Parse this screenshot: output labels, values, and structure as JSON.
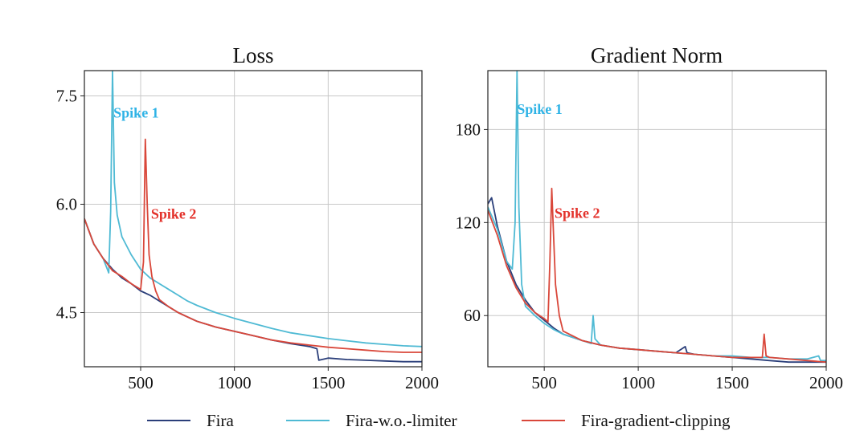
{
  "colors": {
    "fira": "#2b3f7a",
    "fira_wo_limiter": "#4fbad4",
    "fira_gradient_clipping": "#d9473a",
    "spike1_text": "#2fb3e6",
    "spike2_text": "#e3322b"
  },
  "legend": [
    {
      "key": "fira",
      "label": "Fira"
    },
    {
      "key": "fira_wo_limiter",
      "label": "Fira-w.o.-limiter"
    },
    {
      "key": "fira_gradient_clipping",
      "label": "Fira-gradient-clipping"
    }
  ],
  "chart_data": [
    {
      "type": "line",
      "title": "Loss",
      "xlabel": "",
      "ylabel": "",
      "xlim": [
        200,
        2000
      ],
      "ylim": [
        3.75,
        7.85
      ],
      "xticks": [
        500,
        1000,
        1500,
        2000
      ],
      "xtick_labels": [
        "500",
        "1000",
        "1500",
        "2000"
      ],
      "yticks": [
        4.5,
        6.0,
        7.5
      ],
      "ytick_labels": [
        "4.5",
        "6.0",
        "7.5"
      ],
      "grid": true,
      "annotations": [
        {
          "text": "Spike 1",
          "x": 355,
          "y": 7.2,
          "color_key": "spike1_text"
        },
        {
          "text": "Spike 2",
          "x": 555,
          "y": 5.8,
          "color_key": "spike2_text"
        }
      ],
      "series": [
        {
          "key": "fira",
          "name": "Fira",
          "x": [
            200,
            250,
            300,
            350,
            400,
            450,
            500,
            550,
            600,
            650,
            700,
            750,
            800,
            900,
            1000,
            1100,
            1200,
            1300,
            1400,
            1440,
            1450,
            1500,
            1600,
            1700,
            1800,
            1900,
            2000
          ],
          "y": [
            5.8,
            5.45,
            5.25,
            5.1,
            4.98,
            4.9,
            4.8,
            4.74,
            4.66,
            4.58,
            4.5,
            4.44,
            4.38,
            4.3,
            4.24,
            4.18,
            4.12,
            4.07,
            4.03,
            4.0,
            3.84,
            3.87,
            3.85,
            3.84,
            3.83,
            3.82,
            3.82
          ]
        },
        {
          "key": "fira_wo_limiter",
          "name": "Fira-w.o.-limiter",
          "x": [
            200,
            250,
            300,
            330,
            340,
            350,
            360,
            375,
            400,
            450,
            500,
            550,
            600,
            650,
            700,
            750,
            800,
            900,
            1000,
            1100,
            1200,
            1300,
            1400,
            1500,
            1600,
            1700,
            1800,
            1900,
            2000
          ],
          "y": [
            5.8,
            5.45,
            5.25,
            5.05,
            5.9,
            7.85,
            6.3,
            5.85,
            5.55,
            5.3,
            5.1,
            4.98,
            4.9,
            4.82,
            4.74,
            4.66,
            4.6,
            4.5,
            4.42,
            4.35,
            4.28,
            4.22,
            4.18,
            4.14,
            4.11,
            4.08,
            4.06,
            4.04,
            4.03
          ]
        },
        {
          "key": "fira_gradient_clipping",
          "name": "Fira-gradient-clipping",
          "x": [
            200,
            250,
            300,
            350,
            400,
            450,
            500,
            515,
            525,
            535,
            545,
            560,
            580,
            600,
            650,
            700,
            750,
            800,
            900,
            1000,
            1100,
            1200,
            1300,
            1400,
            1500,
            1600,
            1700,
            1800,
            1900,
            2000
          ],
          "y": [
            5.8,
            5.45,
            5.25,
            5.08,
            5.0,
            4.9,
            4.82,
            5.2,
            6.9,
            6.0,
            5.3,
            5.0,
            4.8,
            4.68,
            4.58,
            4.5,
            4.44,
            4.38,
            4.3,
            4.24,
            4.18,
            4.12,
            4.08,
            4.05,
            4.02,
            4.0,
            3.98,
            3.96,
            3.95,
            3.95
          ]
        }
      ]
    },
    {
      "type": "line",
      "title": "Gradient Norm",
      "xlabel": "",
      "ylabel": "",
      "xlim": [
        200,
        2000
      ],
      "ylim": [
        27,
        218
      ],
      "xticks": [
        500,
        1000,
        1500,
        2000
      ],
      "xtick_labels": [
        "500",
        "1000",
        "1500",
        "2000"
      ],
      "yticks": [
        60,
        120,
        180
      ],
      "ytick_labels": [
        "60",
        "120",
        "180"
      ],
      "grid": true,
      "annotations": [
        {
          "text": "Spike 1",
          "x": 355,
          "y": 190,
          "color_key": "spike1_text"
        },
        {
          "text": "Spike 2",
          "x": 555,
          "y": 123,
          "color_key": "spike2_text"
        }
      ],
      "series": [
        {
          "key": "fira",
          "name": "Fira",
          "x": [
            200,
            220,
            250,
            300,
            350,
            400,
            450,
            500,
            550,
            600,
            700,
            800,
            900,
            1000,
            1100,
            1200,
            1250,
            1260,
            1300,
            1400,
            1500,
            1600,
            1700,
            1800,
            1900,
            2000
          ],
          "y": [
            132,
            136,
            118,
            95,
            80,
            70,
            62,
            57,
            52,
            48,
            44,
            41,
            39,
            38,
            37,
            36,
            40,
            36,
            35,
            34,
            33,
            32,
            31,
            30,
            30,
            30
          ]
        },
        {
          "key": "fira_wo_limiter",
          "name": "Fira-w.o.-limiter",
          "x": [
            200,
            250,
            300,
            330,
            345,
            355,
            365,
            380,
            400,
            450,
            500,
            550,
            600,
            700,
            750,
            760,
            770,
            800,
            900,
            1000,
            1100,
            1200,
            1300,
            1400,
            1500,
            1600,
            1700,
            1800,
            1900,
            1960,
            1970,
            2000
          ],
          "y": [
            130,
            116,
            95,
            90,
            120,
            218,
            130,
            80,
            66,
            60,
            55,
            51,
            48,
            44,
            42,
            60,
            45,
            41,
            39,
            38,
            37,
            36,
            35,
            34,
            34,
            33,
            33,
            32,
            32,
            34,
            31,
            31
          ]
        },
        {
          "key": "fira_gradient_clipping",
          "name": "Fira-gradient-clipping",
          "x": [
            200,
            250,
            300,
            350,
            400,
            450,
            500,
            520,
            530,
            540,
            550,
            560,
            580,
            600,
            700,
            800,
            900,
            1000,
            1100,
            1200,
            1300,
            1400,
            1500,
            1600,
            1660,
            1670,
            1680,
            1700,
            1800,
            1900,
            2000
          ],
          "y": [
            128,
            112,
            92,
            78,
            68,
            62,
            58,
            56,
            95,
            142,
            110,
            80,
            60,
            50,
            44,
            41,
            39,
            38,
            37,
            36,
            35,
            34,
            33,
            33,
            33,
            48,
            34,
            33,
            32,
            31,
            30
          ]
        }
      ]
    }
  ]
}
